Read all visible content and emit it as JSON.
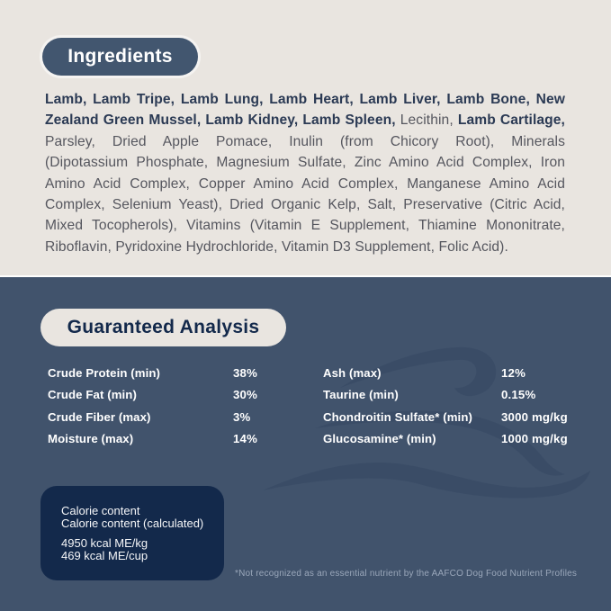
{
  "colors": {
    "cream": "#e9e5e0",
    "navy": "#41536c",
    "pill_navy": "#42566f",
    "box_navy": "#13294b",
    "ink_navy": "#2b3a54",
    "ink_gray": "#55565e",
    "white": "#ffffff",
    "footnote": "#9aa7ba",
    "wave": "#3a4c65"
  },
  "ingredients": {
    "heading": "Ingredients",
    "lines": [
      {
        "justify": true,
        "segments": [
          {
            "text": "Lamb, Lamb Tripe, Lamb Lung, Lamb Heart, Lamb Liver, Lamb Bone, New",
            "bold": true
          }
        ]
      },
      {
        "justify": true,
        "segments": [
          {
            "text": "Zealand Green Mussel, Lamb Kidney, Lamb Spleen,",
            "bold": true
          },
          {
            "text": " Lecithin, ",
            "bold": false
          },
          {
            "text": "Lamb Cartilage,",
            "bold": true
          }
        ]
      },
      {
        "justify": true,
        "segments": [
          {
            "text": "Parsley, Dried Apple Pomace, Inulin (from Chicory Root), Minerals",
            "bold": false
          }
        ]
      },
      {
        "justify": true,
        "segments": [
          {
            "text": "(Dipotassium Phosphate, Magnesium Sulfate, Zinc Amino Acid Complex, Iron",
            "bold": false
          }
        ]
      },
      {
        "justify": true,
        "segments": [
          {
            "text": "Amino Acid Complex, Copper Amino Acid Complex, Manganese Amino Acid",
            "bold": false
          }
        ]
      },
      {
        "justify": true,
        "segments": [
          {
            "text": "Complex, Selenium Yeast), Dried Organic Kelp, Salt, Preservative (Citric Acid,",
            "bold": false
          }
        ]
      },
      {
        "justify": true,
        "segments": [
          {
            "text": "Mixed Tocopherols), Vitamins (Vitamin E Supplement, Thiamine Mononitrate,",
            "bold": false
          }
        ]
      },
      {
        "justify": false,
        "segments": [
          {
            "text": "Riboflavin, Pyridoxine Hydrochloride, Vitamin D3 Supplement, Folic Acid).",
            "bold": false
          }
        ]
      }
    ]
  },
  "analysis": {
    "heading": "Guaranteed Analysis",
    "columns": [
      {
        "rows": [
          {
            "label": "Crude Protein (min)",
            "value": "38%"
          },
          {
            "label": "Crude Fat (min)",
            "value": "30%"
          },
          {
            "label": "Crude Fiber (max)",
            "value": "3%"
          },
          {
            "label": "Moisture (max)",
            "value": "14%"
          }
        ]
      },
      {
        "rows": [
          {
            "label": "Ash (max)",
            "value": "12%"
          },
          {
            "label": "Taurine (min)",
            "value": "0.15%"
          },
          {
            "label": "Chondroitin Sulfate* (min)",
            "value": "3000 mg/kg"
          },
          {
            "label": "Glucosamine* (min)",
            "value": "1000 mg/kg"
          }
        ]
      }
    ],
    "calorie_box": {
      "title_lines": [
        "Calorie content",
        "Calorie content (calculated)"
      ],
      "value_lines": [
        "4950 kcal ME/kg",
        "469 kcal ME/cup"
      ]
    },
    "footnote": "*Not recognized as an essential nutrient by the AAFCO Dog Food Nutrient Profiles"
  }
}
